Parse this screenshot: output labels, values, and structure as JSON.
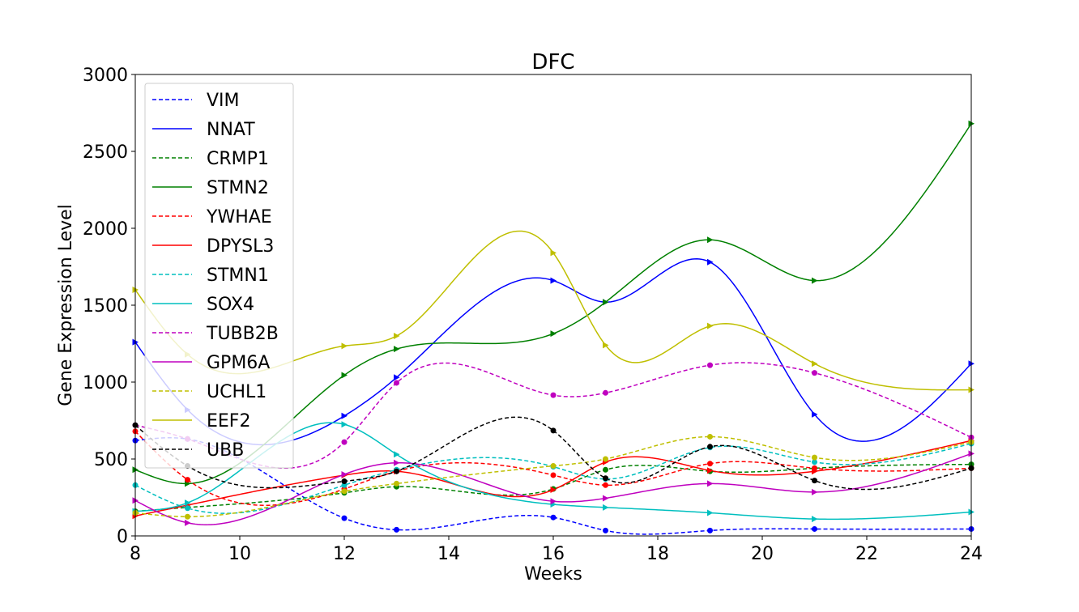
{
  "chart_data": {
    "type": "line",
    "title": "DFC",
    "xlabel": "Weeks",
    "ylabel": "Gene Expression Level",
    "xlim": [
      8,
      24
    ],
    "ylim": [
      0,
      3000
    ],
    "xticks": [
      8,
      10,
      12,
      14,
      16,
      18,
      20,
      22,
      24
    ],
    "yticks": [
      0,
      500,
      1000,
      1500,
      2000,
      2500,
      3000
    ],
    "grid": false,
    "legend_position": "upper-left",
    "x": [
      8,
      9,
      12,
      13,
      16,
      17,
      19,
      21,
      24
    ],
    "series": [
      {
        "name": "VIM",
        "color": "#0000ff",
        "dash": true,
        "marker": "circle",
        "values": [
          620,
          630,
          115,
          40,
          120,
          35,
          35,
          45,
          45
        ]
      },
      {
        "name": "NNAT",
        "color": "#0000ff",
        "dash": false,
        "marker": "triangle",
        "values": [
          1260,
          820,
          780,
          1030,
          1660,
          1520,
          1780,
          790,
          1120
        ]
      },
      {
        "name": "CRMP1",
        "color": "#008000",
        "dash": true,
        "marker": "circle",
        "values": [
          160,
          185,
          280,
          320,
          305,
          430,
          420,
          440,
          465
        ]
      },
      {
        "name": "STMN2",
        "color": "#008000",
        "dash": false,
        "marker": "triangle",
        "values": [
          430,
          340,
          1045,
          1215,
          1315,
          1520,
          1925,
          1660,
          2680
        ]
      },
      {
        "name": "YWHAE",
        "color": "#ff0000",
        "dash": true,
        "marker": "circle",
        "values": [
          680,
          365,
          305,
          420,
          395,
          330,
          470,
          440,
          440
        ]
      },
      {
        "name": "DPYSL3",
        "color": "#ff0000",
        "dash": false,
        "marker": "triangle",
        "values": [
          130,
          200,
          395,
          420,
          300,
          480,
          425,
          420,
          620
        ]
      },
      {
        "name": "STMN1",
        "color": "#00bfbf",
        "dash": true,
        "marker": "circle",
        "values": [
          330,
          180,
          330,
          430,
          450,
          370,
          575,
          480,
          600
        ]
      },
      {
        "name": "SOX4",
        "color": "#00bfbf",
        "dash": false,
        "marker": "triangle",
        "values": [
          160,
          215,
          725,
          530,
          205,
          185,
          150,
          110,
          155
        ]
      },
      {
        "name": "TUBB2B",
        "color": "#bf00bf",
        "dash": true,
        "marker": "circle",
        "values": [
          720,
          630,
          610,
          995,
          915,
          930,
          1110,
          1060,
          640
        ]
      },
      {
        "name": "GPM6A",
        "color": "#bf00bf",
        "dash": false,
        "marker": "triangle",
        "values": [
          230,
          85,
          400,
          475,
          225,
          245,
          340,
          285,
          535
        ]
      },
      {
        "name": "UCHL1",
        "color": "#bfbf00",
        "dash": true,
        "marker": "circle",
        "values": [
          150,
          125,
          290,
          340,
          455,
          500,
          645,
          510,
          610
        ]
      },
      {
        "name": "EEF2",
        "color": "#bfbf00",
        "dash": false,
        "marker": "triangle",
        "values": [
          1600,
          1180,
          1235,
          1300,
          1840,
          1240,
          1365,
          1120,
          950
        ]
      },
      {
        "name": "UBB",
        "color": "#000000",
        "dash": true,
        "marker": "circle",
        "values": [
          720,
          455,
          355,
          420,
          685,
          375,
          580,
          360,
          440
        ]
      }
    ]
  }
}
